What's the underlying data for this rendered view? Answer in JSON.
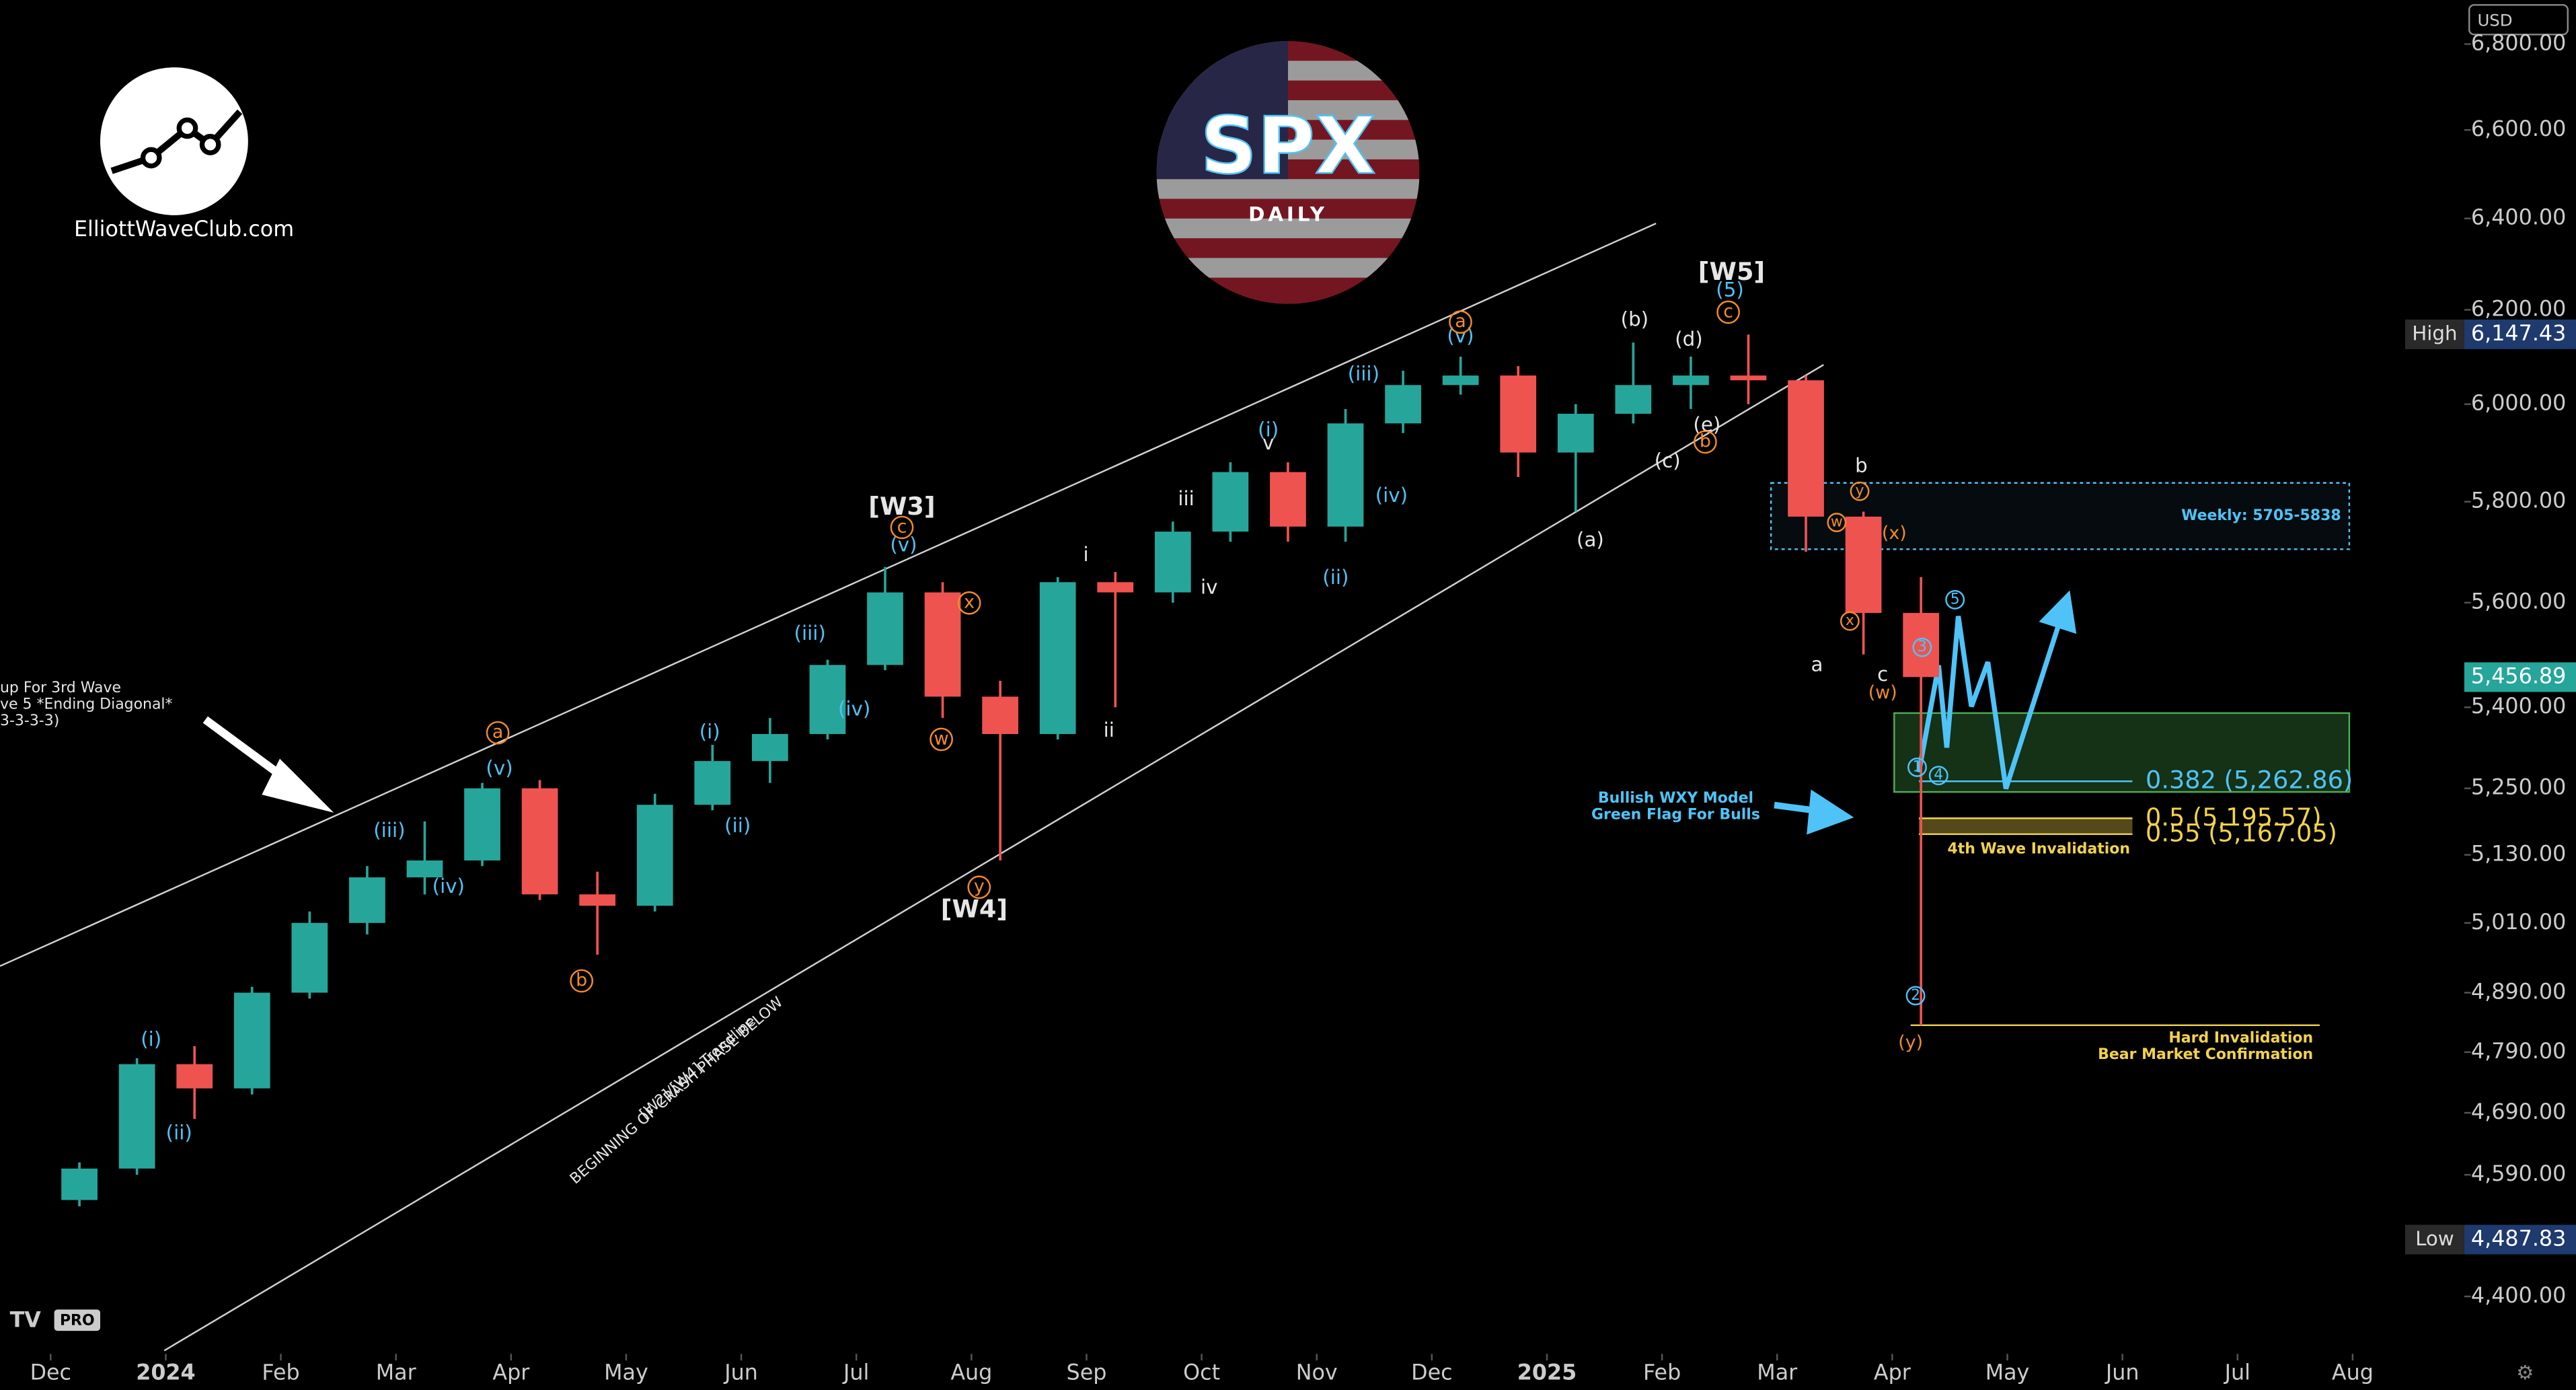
{
  "chart_data": {
    "type": "candlestick",
    "x": [
      0.25,
      0.75,
      1.25,
      1.75,
      2.25,
      2.75,
      3.25,
      3.75,
      4.25,
      4.75,
      5.25,
      5.75,
      6.25,
      6.75,
      7.25,
      7.75,
      8.25,
      8.75,
      9.25,
      9.75,
      10.25,
      10.75,
      11.25,
      11.75,
      12.25,
      12.75,
      13.25,
      13.75,
      14.25,
      14.75,
      15.25,
      15.75,
      16.25
    ],
    "open": [
      4550,
      4600,
      4770,
      4730,
      4890,
      5010,
      5090,
      5120,
      5250,
      5060,
      5040,
      5220,
      5300,
      5350,
      5480,
      5620,
      5420,
      5350,
      5640,
      5620,
      5740,
      5860,
      5750,
      5960,
      6040,
      6060,
      5900,
      5980,
      6040,
      6060,
      6050,
      5770,
      5580
    ],
    "high": [
      4610,
      4780,
      4800,
      4900,
      5030,
      5110,
      5190,
      5260,
      5265,
      5100,
      5240,
      5330,
      5380,
      5490,
      5670,
      5640,
      5450,
      5650,
      5660,
      5760,
      5880,
      5880,
      5990,
      6070,
      6100,
      6080,
      6000,
      6130,
      6100,
      6147,
      6060,
      5780,
      5650
    ],
    "low": [
      4540,
      4590,
      4680,
      4720,
      4880,
      4990,
      5060,
      5110,
      5050,
      4955,
      5030,
      5210,
      5260,
      5340,
      5470,
      5380,
      5120,
      5340,
      5400,
      5600,
      5720,
      5720,
      5720,
      5940,
      6020,
      5850,
      5780,
      5960,
      5990,
      6000,
      5700,
      5500,
      4835
    ],
    "close": [
      4600,
      4770,
      4730,
      4890,
      5010,
      5090,
      5120,
      5250,
      5060,
      5040,
      5220,
      5300,
      5350,
      5480,
      5620,
      5420,
      5350,
      5640,
      5620,
      5740,
      5860,
      5750,
      5960,
      6040,
      6060,
      5900,
      5980,
      6040,
      6060,
      6050,
      5770,
      5580,
      5457
    ],
    "up_color": "#26a69a",
    "down_color": "#ef5350",
    "xlim": [
      -0.44,
      20.97
    ],
    "xticks": [
      {
        "value": 0,
        "label": "Dec"
      },
      {
        "value": 1,
        "label": "2024"
      },
      {
        "value": 2,
        "label": "Feb"
      },
      {
        "value": 3,
        "label": "Mar"
      },
      {
        "value": 4,
        "label": "Apr"
      },
      {
        "value": 5,
        "label": "May"
      },
      {
        "value": 6,
        "label": "Jun"
      },
      {
        "value": 7,
        "label": "Jul"
      },
      {
        "value": 8,
        "label": "Aug"
      },
      {
        "value": 9,
        "label": "Sep"
      },
      {
        "value": 10,
        "label": "Oct"
      },
      {
        "value": 11,
        "label": "Nov"
      },
      {
        "value": 12,
        "label": "Dec"
      },
      {
        "value": 13,
        "label": "2025"
      },
      {
        "value": 14,
        "label": "Feb"
      },
      {
        "value": 15,
        "label": "Mar"
      },
      {
        "value": 16,
        "label": "Apr"
      },
      {
        "value": 17,
        "label": "May"
      },
      {
        "value": 18,
        "label": "Jun"
      },
      {
        "value": 19,
        "label": "Jul"
      },
      {
        "value": 20,
        "label": "Aug"
      }
    ],
    "ylim": [
      4318,
      6905
    ],
    "log_scale": true,
    "grid": false,
    "yticks": [
      {
        "value": 6800,
        "label": "6,800.00"
      },
      {
        "value": 6600,
        "label": "6,600.00"
      },
      {
        "value": 6400,
        "label": "6,400.00"
      },
      {
        "value": 6200,
        "label": "6,200.00"
      },
      {
        "value": 6000,
        "label": "6,000.00"
      },
      {
        "value": 5800,
        "label": "5,800.00"
      },
      {
        "value": 5600,
        "label": "5,600.00"
      },
      {
        "value": 5400,
        "label": "5,400.00"
      },
      {
        "value": 5250,
        "label": "5,250.00"
      },
      {
        "value": 5130,
        "label": "5,130.00"
      },
      {
        "value": 5010,
        "label": "5,010.00"
      },
      {
        "value": 4890,
        "label": "4,890.00"
      },
      {
        "value": 4790,
        "label": "4,790.00"
      },
      {
        "value": 4690,
        "label": "4,690.00"
      },
      {
        "value": 4590,
        "label": "4,590.00"
      },
      {
        "value": 4400,
        "label": "4,400.00"
      }
    ],
    "currency": "USD",
    "price_markers": [
      {
        "name": "High",
        "value": 6147.43,
        "label": "6,147.43"
      },
      {
        "name": "Low",
        "value": 4487.83,
        "label": "4,487.83"
      },
      {
        "value": 5456.89,
        "label": "5,456.89"
      }
    ],
    "levels": [
      {
        "value": 5262.86,
        "label": "0.382 (5,262.86)",
        "color": "#4fc3f7"
      },
      {
        "value": 5195.57,
        "label": "0.5 (5,195.57)",
        "color": "#f2d24b"
      },
      {
        "value": 5167.05,
        "label": "0.55 (5,167.05)",
        "color": "#f2d24b"
      }
    ],
    "zone": {
      "label": "Weekly: 5705-5838",
      "range": [
        5705,
        5838
      ]
    },
    "hard_invalidation": {
      "value": 4835,
      "label": [
        "Hard Invalidation",
        "Bear Market Confirmation"
      ]
    },
    "annotations": [
      "[W3]",
      "[W4]",
      "[W5]",
      "[W2]/[W4] Trendline",
      "BEGINNING OF CRASH PHASE BELOW",
      "up For 3rd Wave",
      "ve 5 *Ending Diagonal*",
      "3-3-3-3)",
      "Bullish WXY Model",
      "Green Flag For Bulls",
      "4th Wave Invalidation",
      "(b)",
      "(d)",
      "(e)",
      "(c)",
      "(a)",
      "b",
      "a",
      "c",
      "i",
      "ii",
      "iii",
      "iv",
      "v",
      "(i)",
      "(ii)",
      "(iii)",
      "(iv)",
      "(v)",
      "(i)",
      "(ii)",
      "(iii)",
      "(iv)",
      "(v)",
      "(i)",
      "(ii)",
      "(iii)",
      "(iv)",
      "(v)",
      "(5)",
      "a",
      "b",
      "c",
      "x",
      "w",
      "y",
      "a",
      "c",
      "b",
      "w",
      "x",
      "y",
      "(x)",
      "(w)",
      "(y)",
      "1",
      "2",
      "3",
      "4",
      "5"
    ],
    "brand": "ElliottWaveClub.com",
    "logo_title": "SPX",
    "logo_subtitle": "DAILY",
    "badge": "PRO"
  }
}
